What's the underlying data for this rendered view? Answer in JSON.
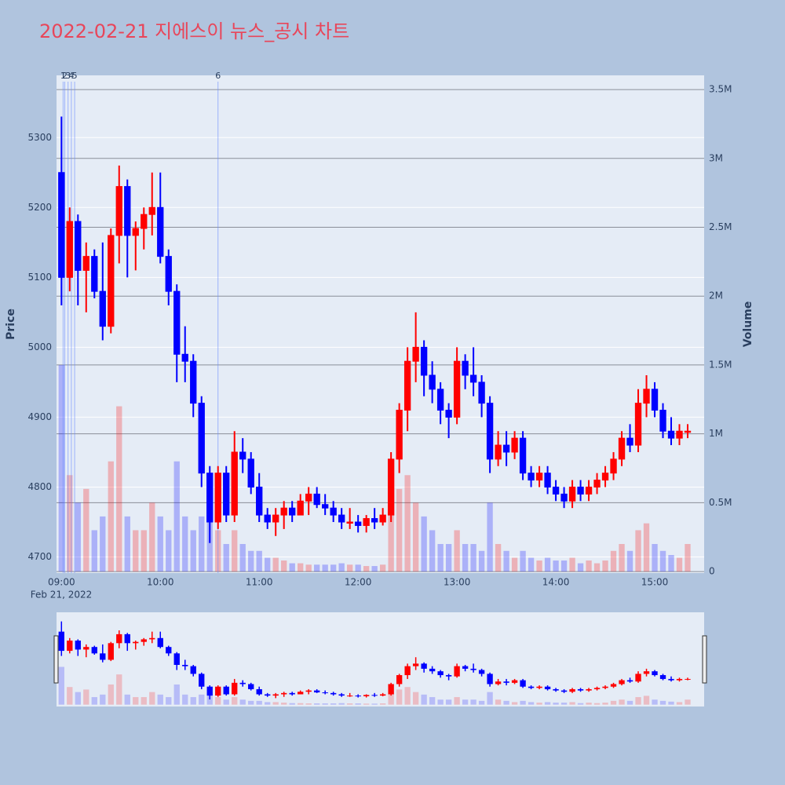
{
  "chart_data": {
    "type": "candlestick",
    "title": "2022-02-21 지에스이 뉴스_공시 차트",
    "y_label": "Price",
    "y2_label": "Volume",
    "date_label": "Feb 21, 2022",
    "increasing_color": "#ff0000",
    "decreasing_color": "#0000ff",
    "x": [
      "09:00",
      "09:05",
      "09:10",
      "09:15",
      "09:20",
      "09:25",
      "09:30",
      "09:35",
      "09:40",
      "09:45",
      "09:50",
      "09:55",
      "10:00",
      "10:05",
      "10:10",
      "10:15",
      "10:20",
      "10:25",
      "10:30",
      "10:35",
      "10:40",
      "10:45",
      "10:50",
      "10:55",
      "11:00",
      "11:05",
      "11:10",
      "11:15",
      "11:20",
      "11:25",
      "11:30",
      "11:35",
      "11:40",
      "11:45",
      "11:50",
      "11:55",
      "12:00",
      "12:05",
      "12:10",
      "12:15",
      "12:20",
      "12:25",
      "12:30",
      "12:35",
      "12:40",
      "12:45",
      "12:50",
      "12:55",
      "13:00",
      "13:05",
      "13:10",
      "13:15",
      "13:20",
      "13:25",
      "13:30",
      "13:35",
      "13:40",
      "13:45",
      "13:50",
      "13:55",
      "14:00",
      "14:05",
      "14:10",
      "14:15",
      "14:20",
      "14:25",
      "14:30",
      "14:35",
      "14:40",
      "14:45",
      "14:50",
      "14:55",
      "15:00",
      "15:05",
      "15:10",
      "15:15",
      "15:20"
    ],
    "open": [
      5250,
      5100,
      5180,
      5110,
      5130,
      5080,
      5030,
      5160,
      5230,
      5160,
      5170,
      5190,
      5200,
      5130,
      5080,
      4990,
      4980,
      4920,
      4820,
      4750,
      4820,
      4760,
      4850,
      4840,
      4800,
      4760,
      4750,
      4760,
      4770,
      4760,
      4780,
      4790,
      4775,
      4770,
      4760,
      4750,
      4750,
      4745,
      4755,
      4750,
      4760,
      4840,
      4910,
      4980,
      5000,
      4960,
      4940,
      4910,
      4900,
      4980,
      4960,
      4950,
      4920,
      4840,
      4860,
      4850,
      4870,
      4820,
      4810,
      4820,
      4800,
      4790,
      4780,
      4800,
      4790,
      4800,
      4810,
      4820,
      4840,
      4870,
      4860,
      4920,
      4940,
      4910,
      4880,
      4870,
      4880
    ],
    "high": [
      5330,
      5200,
      5190,
      5150,
      5140,
      5150,
      5170,
      5260,
      5240,
      5180,
      5200,
      5250,
      5250,
      5140,
      5090,
      5030,
      4990,
      4930,
      4830,
      4830,
      4830,
      4880,
      4870,
      4850,
      4820,
      4770,
      4770,
      4780,
      4780,
      4790,
      4800,
      4800,
      4790,
      4780,
      4770,
      4770,
      4760,
      4760,
      4770,
      4770,
      4850,
      4920,
      5000,
      5050,
      5010,
      4980,
      4950,
      4920,
      5000,
      4990,
      5000,
      4960,
      4930,
      4880,
      4880,
      4880,
      4880,
      4830,
      4830,
      4830,
      4810,
      4800,
      4810,
      4810,
      4810,
      4820,
      4830,
      4850,
      4880,
      4890,
      4940,
      4960,
      4950,
      4920,
      4900,
      4890,
      4890
    ],
    "low": [
      5060,
      5080,
      5060,
      5050,
      5070,
      5010,
      5020,
      5120,
      5100,
      5110,
      5140,
      5160,
      5120,
      5060,
      4950,
      4950,
      4900,
      4800,
      4720,
      4740,
      4750,
      4750,
      4820,
      4790,
      4750,
      4740,
      4730,
      4740,
      4750,
      4760,
      4760,
      4770,
      4760,
      4750,
      4740,
      4740,
      4735,
      4735,
      4740,
      4745,
      4750,
      4820,
      4880,
      4950,
      4930,
      4920,
      4890,
      4870,
      4890,
      4940,
      4930,
      4900,
      4820,
      4830,
      4830,
      4840,
      4810,
      4800,
      4800,
      4790,
      4780,
      4770,
      4770,
      4780,
      4780,
      4790,
      4800,
      4810,
      4830,
      4850,
      4850,
      4900,
      4900,
      4870,
      4860,
      4860,
      4870
    ],
    "close": [
      5100,
      5180,
      5110,
      5130,
      5080,
      5030,
      5160,
      5230,
      5160,
      5170,
      5190,
      5200,
      5130,
      5080,
      4990,
      4980,
      4920,
      4820,
      4750,
      4820,
      4760,
      4850,
      4840,
      4800,
      4760,
      4750,
      4760,
      4770,
      4760,
      4780,
      4790,
      4775,
      4770,
      4760,
      4750,
      4750,
      4745,
      4755,
      4750,
      4760,
      4840,
      4910,
      4980,
      5000,
      4960,
      4940,
      4910,
      4900,
      4980,
      4960,
      4950,
      4920,
      4840,
      4860,
      4850,
      4870,
      4820,
      4810,
      4820,
      4800,
      4790,
      4780,
      4800,
      4790,
      4800,
      4810,
      4820,
      4840,
      4870,
      4860,
      4920,
      4940,
      4910,
      4880,
      4870,
      4880,
      4880
    ],
    "volume": [
      1500000,
      700000,
      500000,
      600000,
      300000,
      400000,
      800000,
      1200000,
      400000,
      300000,
      300000,
      500000,
      400000,
      300000,
      800000,
      400000,
      300000,
      400000,
      500000,
      300000,
      200000,
      300000,
      200000,
      150000,
      150000,
      100000,
      100000,
      80000,
      60000,
      60000,
      50000,
      50000,
      50000,
      50000,
      60000,
      50000,
      50000,
      40000,
      40000,
      50000,
      500000,
      600000,
      700000,
      500000,
      400000,
      300000,
      200000,
      200000,
      300000,
      200000,
      200000,
      150000,
      500000,
      200000,
      150000,
      100000,
      150000,
      100000,
      80000,
      100000,
      80000,
      80000,
      100000,
      60000,
      80000,
      60000,
      80000,
      150000,
      200000,
      150000,
      300000,
      350000,
      200000,
      150000,
      120000,
      100000,
      200000
    ],
    "annotations": [
      {
        "x": "09:01",
        "text": "1"
      },
      {
        "x": "09:02",
        "text": "2"
      },
      {
        "x": "09:04",
        "text": "3"
      },
      {
        "x": "09:06",
        "text": "4"
      },
      {
        "x": "09:08",
        "text": "5"
      },
      {
        "x": "10:35",
        "text": "6"
      }
    ],
    "xlim": [
      "08:57",
      "15:30"
    ],
    "xticks": [
      "09:00",
      "10:00",
      "11:00",
      "12:00",
      "13:00",
      "14:00",
      "15:00"
    ],
    "ylim": [
      4677,
      5389
    ],
    "yticks": [
      4700,
      4800,
      4900,
      5000,
      5100,
      5200,
      5300
    ],
    "y2lim": [
      -11000,
      3603000
    ],
    "y2ticks": [
      0,
      {
        "value": 500000,
        "label": "0.5M"
      },
      {
        "value": 1000000,
        "label": "1M"
      },
      {
        "value": 1500000,
        "label": "1.5M"
      },
      {
        "value": 2000000,
        "label": "2M"
      },
      {
        "value": 2500000,
        "label": "2.5M"
      },
      {
        "value": 3000000,
        "label": "3M"
      },
      {
        "value": 3500000,
        "label": "3.5M"
      }
    ],
    "grid": true,
    "range_slider": true
  }
}
